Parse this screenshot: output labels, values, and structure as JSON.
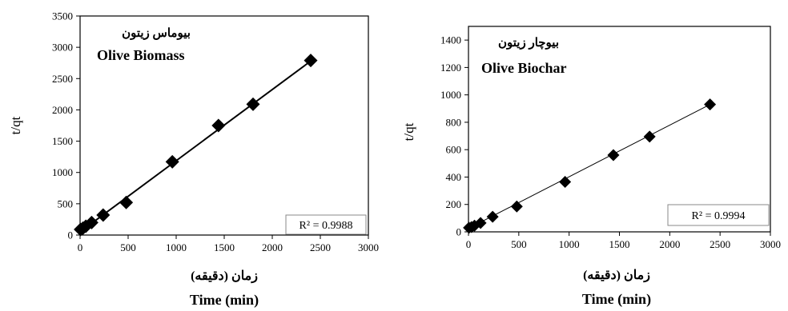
{
  "chart_data": [
    {
      "type": "scatter",
      "title": "Olive Biomass",
      "title_fa": "بیوماس زیتون",
      "xlabel": "Time (min)",
      "xlabel_fa": "زمان (دقیقه)",
      "ylabel": "t/qt",
      "xlim": [
        0,
        3000
      ],
      "ylim": [
        0,
        3500
      ],
      "xticks": [
        0,
        500,
        1000,
        1500,
        2000,
        2500,
        3000
      ],
      "yticks": [
        0,
        500,
        1000,
        1500,
        2000,
        2500,
        3000,
        3500
      ],
      "grid": false,
      "marker": "diamond",
      "x": [
        5,
        30,
        60,
        120,
        240,
        480,
        960,
        1440,
        1800,
        2400
      ],
      "y": [
        90,
        110,
        140,
        200,
        320,
        520,
        1170,
        1750,
        2090,
        2790
      ],
      "trendline": {
        "x": [
          0,
          2400
        ],
        "y": [
          50,
          2780
        ]
      },
      "r2_label": "R² = 0.9988",
      "r2_box": true
    },
    {
      "type": "scatter",
      "title": "Olive Biochar",
      "title_fa": "بیوچار زیتون",
      "xlabel": "Time (min)",
      "xlabel_fa": "زمان (دقیقه)",
      "ylabel": "t/qt",
      "xlim": [
        0,
        3000
      ],
      "ylim": [
        0,
        1500
      ],
      "xticks": [
        0,
        500,
        1000,
        1500,
        2000,
        2500,
        3000
      ],
      "yticks": [
        0,
        200,
        400,
        600,
        800,
        1000,
        1200,
        1400
      ],
      "grid": false,
      "marker": "diamond",
      "x": [
        5,
        30,
        60,
        120,
        240,
        480,
        960,
        1440,
        1800,
        2400
      ],
      "y": [
        30,
        35,
        45,
        65,
        110,
        185,
        365,
        560,
        695,
        930
      ],
      "trendline": {
        "x": [
          0,
          2400
        ],
        "y": [
          25,
          930
        ]
      },
      "r2_label": "R² = 0.9994",
      "r2_box": true
    }
  ]
}
